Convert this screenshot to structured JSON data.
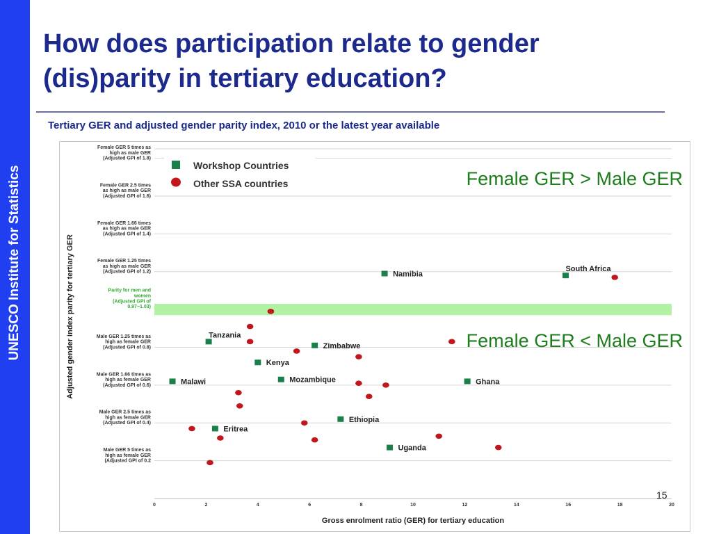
{
  "sidebar": {
    "text": "UNESCO Institute for Statistics"
  },
  "slide": {
    "title_line1": "How does participation relate to gender",
    "title_line2": "(dis)parity in tertiary education?",
    "page_number": "15"
  },
  "colors": {
    "title": "#1b2a8c",
    "sidebar": "#1f3ff0",
    "workshop": "#1b7f4a",
    "other": "#c0171c",
    "parity_band": "#a9f19a",
    "annotation": "#1d7d1d"
  },
  "chart_data": {
    "type": "scatter",
    "title": "Tertiary GER and adjusted gender parity index, 2010 or the latest year available",
    "xlabel": "Gross enrolment ratio (GER)  for tertiary education",
    "ylabel": "Adjusted gender index parity for tertiary GER",
    "xlim": [
      0,
      20
    ],
    "xticks": [
      "0",
      "2",
      "4",
      "6",
      "8",
      "10",
      "12",
      "14",
      "16",
      "18",
      "20"
    ],
    "y_reference_labels": [
      {
        "lines": [
          "Female GER 5 times as",
          "high as male GER",
          "(Adjusted GPI of 1.8)"
        ],
        "gpi": 1.8
      },
      {
        "lines": [
          "Female GER 2.5 times",
          "as high as male GER",
          "(Adjusted GPI of 1.6)"
        ],
        "gpi": 1.6
      },
      {
        "lines": [
          "Female GER 1.66 times",
          "as high as male GER",
          "(Adjusted GPI of 1.4)"
        ],
        "gpi": 1.4
      },
      {
        "lines": [
          "Female GER 1.25 times",
          "as high as male GER",
          "(Adjusted GPI of 1.2)"
        ],
        "gpi": 1.2
      },
      {
        "lines": [
          "Parity for men and",
          "women",
          "(Adjusted GPI of",
          "0.97~1.03)"
        ],
        "gpi": 1.0,
        "parity": true
      },
      {
        "lines": [
          "Male GER 1.25 times as",
          "high as female GER",
          "(Adjusted GPI of 0.8)"
        ],
        "gpi": 0.8
      },
      {
        "lines": [
          "Male GER 1.66 times as",
          "high as female GER",
          "(Adjusted GPI of 0.6)"
        ],
        "gpi": 0.6
      },
      {
        "lines": [
          "Male GER 2.5 times as",
          "high as female GER",
          "(Adjusted GPI of 0.4)"
        ],
        "gpi": 0.4
      },
      {
        "lines": [
          "Male GER 5 times as",
          "high as female GER",
          "(Adjusted GPI of 0.2"
        ],
        "gpi": 0.2
      }
    ],
    "ylim": [
      0,
      1.85
    ],
    "parity_band": [
      0.97,
      1.03
    ],
    "legend": {
      "position": "top-left",
      "entries": [
        "Workshop Countries",
        "Other SSA countries"
      ]
    },
    "annotations": [
      "Female GER > Male GER",
      "Female GER < Male GER"
    ],
    "series": [
      {
        "name": "Workshop Countries",
        "marker": "square",
        "points": [
          {
            "label": "Namibia",
            "x": 8.9,
            "y": 1.19
          },
          {
            "label": "South Africa",
            "x": 15.9,
            "y": 1.18
          },
          {
            "label": "Tanzania",
            "x": 2.1,
            "y": 0.83
          },
          {
            "label": "Zimbabwe",
            "x": 6.2,
            "y": 0.81
          },
          {
            "label": "Kenya",
            "x": 4.0,
            "y": 0.72
          },
          {
            "label": "Malawi",
            "x": 0.7,
            "y": 0.62
          },
          {
            "label": "Mozambique",
            "x": 4.9,
            "y": 0.63
          },
          {
            "label": "Ghana",
            "x": 12.1,
            "y": 0.62
          },
          {
            "label": "Ethiopia",
            "x": 7.2,
            "y": 0.42
          },
          {
            "label": "Eritrea",
            "x": 2.35,
            "y": 0.37
          },
          {
            "label": "Uganda",
            "x": 9.1,
            "y": 0.27
          }
        ]
      },
      {
        "name": "Other SSA countries",
        "marker": "circle",
        "points": [
          {
            "x": 4.5,
            "y": 0.99
          },
          {
            "x": 3.7,
            "y": 0.91
          },
          {
            "x": 3.7,
            "y": 0.83
          },
          {
            "x": 17.8,
            "y": 1.17
          },
          {
            "x": 5.5,
            "y": 0.78
          },
          {
            "x": 7.9,
            "y": 0.75
          },
          {
            "x": 11.5,
            "y": 0.83
          },
          {
            "x": 7.9,
            "y": 0.61
          },
          {
            "x": 8.95,
            "y": 0.6
          },
          {
            "x": 3.25,
            "y": 0.56
          },
          {
            "x": 8.3,
            "y": 0.54
          },
          {
            "x": 3.3,
            "y": 0.49
          },
          {
            "x": 5.8,
            "y": 0.4
          },
          {
            "x": 1.45,
            "y": 0.37
          },
          {
            "x": 11.0,
            "y": 0.33
          },
          {
            "x": 2.55,
            "y": 0.32
          },
          {
            "x": 6.2,
            "y": 0.31
          },
          {
            "x": 13.3,
            "y": 0.27
          },
          {
            "x": 2.15,
            "y": 0.19
          }
        ]
      }
    ]
  }
}
